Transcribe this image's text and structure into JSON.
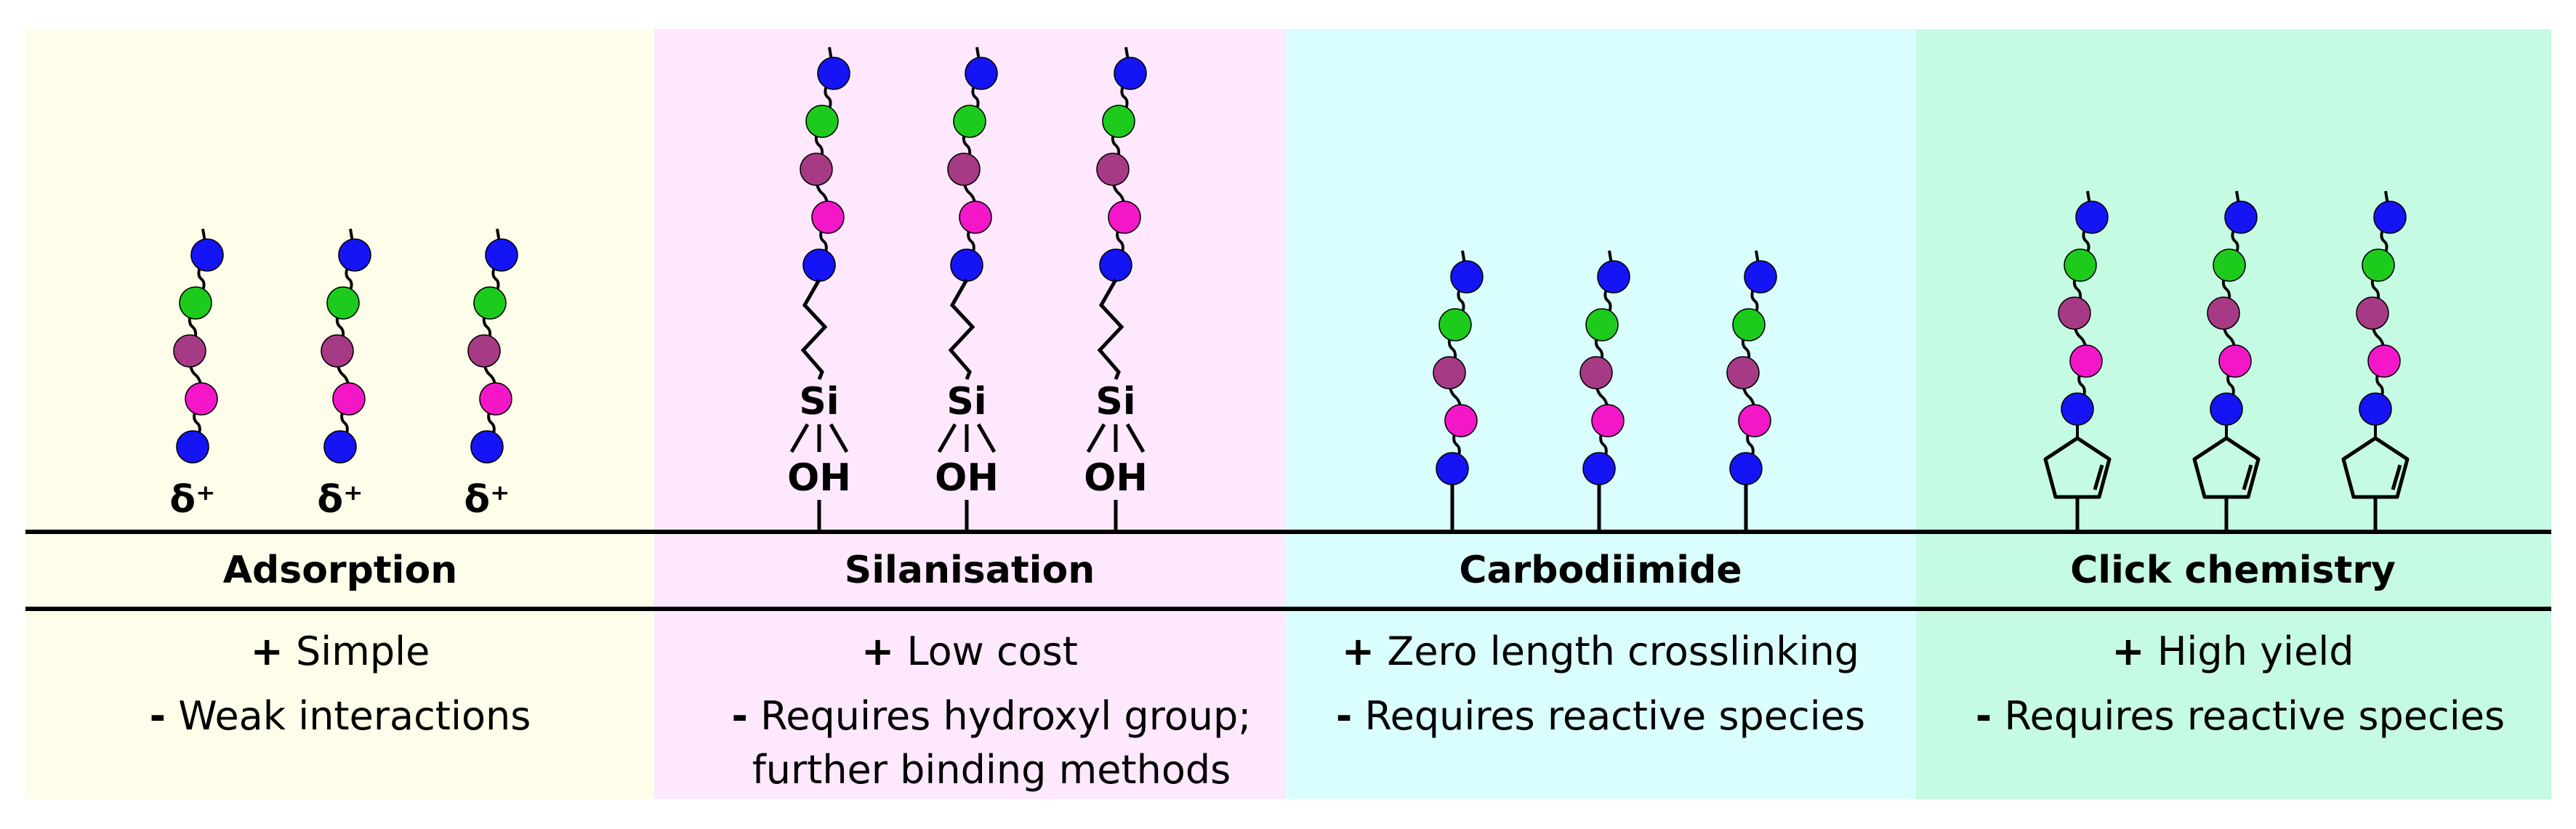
{
  "colors": {
    "panel_backgrounds": [
      "#fdfde9",
      "#fde8fd",
      "#dafdfd",
      "#c6fbe3"
    ],
    "bead_blue": "#1414f5",
    "bead_green": "#1ccb1c",
    "bead_purple": "#a63a85",
    "bead_magenta": "#f317c8",
    "line": "#000000"
  },
  "panels": [
    {
      "title": "Adsorption",
      "pro_sign": "+",
      "pro": "Simple",
      "con_sign": "-",
      "con": "Weak interactions",
      "con_cont": "",
      "anchor_label": "δ⁺",
      "chain_icon": "bead-chain-icon"
    },
    {
      "title": "Silanisation",
      "pro_sign": "+",
      "pro": "Low cost",
      "con_sign": "-",
      "con": "Requires hydroxyl group;",
      "con_cont": "further binding methods",
      "anchor_si": "Si",
      "anchor_oh": "OH",
      "chain_icon": "bead-chain-icon"
    },
    {
      "title": "Carbodiimide",
      "pro_sign": "+",
      "pro": "Zero length crosslinking",
      "con_sign": "-",
      "con": "Requires reactive species",
      "con_cont": "",
      "chain_icon": "bead-chain-icon"
    },
    {
      "title": "Click chemistry",
      "pro_sign": "+",
      "pro": "High yield",
      "con_sign": "-",
      "con": "Requires reactive species",
      "con_cont": "",
      "anchor_icon": "cyclopentene-icon",
      "chain_icon": "bead-chain-icon"
    }
  ]
}
